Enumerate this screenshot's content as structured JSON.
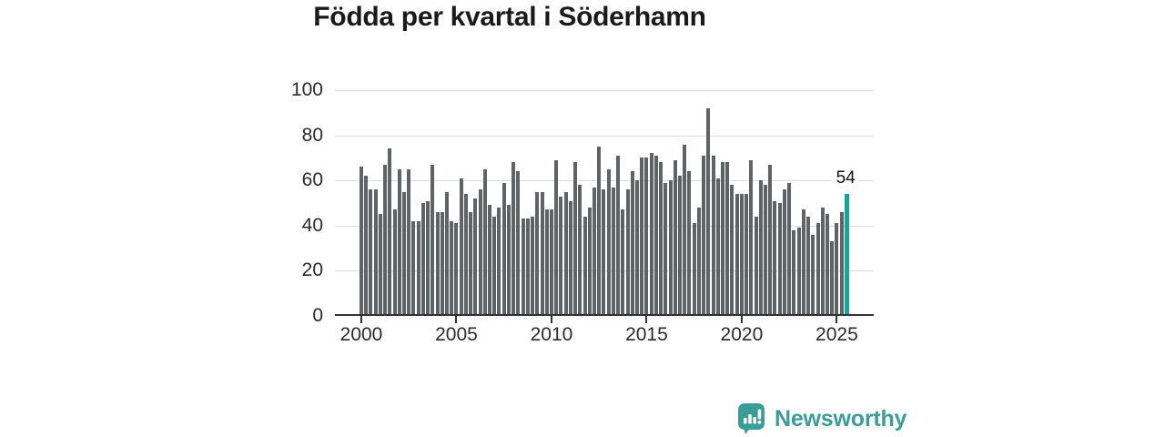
{
  "header": {
    "title": "Födda per kvartal i Söderhamn"
  },
  "chart_data": {
    "type": "bar",
    "title": "Födda per kvartal i Söderhamn",
    "x_unit": "quarter",
    "x_range": [
      "2000 Q1",
      "2025 Q3"
    ],
    "x_tick_labels": [
      "2000",
      "2005",
      "2010",
      "2015",
      "2020",
      "2025"
    ],
    "y_ticks": [
      0,
      20,
      40,
      60,
      80,
      100
    ],
    "ylim": [
      0,
      100
    ],
    "grid": "horizontal",
    "legend": "none",
    "bar_color": "#5e6366",
    "highlight_color": "#12a79c",
    "highlight_index": 102,
    "highlight_label": "54",
    "values": [
      66,
      62,
      56,
      56,
      45,
      67,
      74,
      47,
      65,
      55,
      65,
      42,
      42,
      50,
      51,
      67,
      46,
      46,
      55,
      42,
      41,
      61,
      54,
      46,
      52,
      56,
      65,
      49,
      44,
      48,
      59,
      49,
      68,
      64,
      43,
      43,
      44,
      55,
      55,
      47,
      47,
      69,
      53,
      55,
      51,
      68,
      58,
      44,
      48,
      57,
      75,
      56,
      65,
      57,
      71,
      47,
      56,
      64,
      60,
      70,
      70,
      72,
      71,
      68,
      59,
      60,
      69,
      62,
      76,
      64,
      41,
      48,
      71,
      92,
      71,
      61,
      68,
      68,
      58,
      54,
      54,
      54,
      69,
      44,
      60,
      58,
      67,
      51,
      50,
      56,
      59,
      38,
      39,
      47,
      44,
      36,
      41,
      48,
      45,
      33,
      41,
      46,
      54
    ]
  },
  "branding": {
    "logo_text": "Newsworthy",
    "logo_icon": "newsworthy-bar-chart-bubble-icon",
    "logo_color": "#3b9d97"
  }
}
